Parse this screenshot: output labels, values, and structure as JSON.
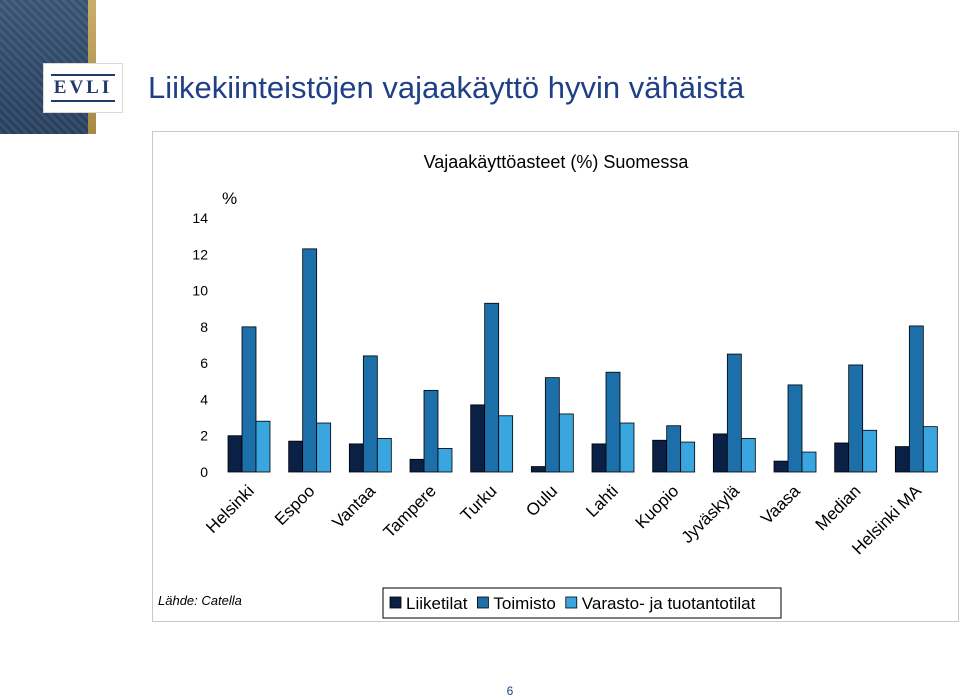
{
  "header": {
    "title": "Liikekiinteistöjen vajaakäyttö hyvin vähäistä",
    "logo_text": "EVLI"
  },
  "chart_data": {
    "type": "bar",
    "title": "Vajaakäyttöasteet (%) Suomessa",
    "ylabel": "%",
    "xlabel": "",
    "ylim": [
      0,
      14
    ],
    "yticks": [
      0,
      2,
      4,
      6,
      8,
      10,
      12,
      14
    ],
    "categories": [
      "Helsinki",
      "Espoo",
      "Vantaa",
      "Tampere",
      "Turku",
      "Oulu",
      "Lahti",
      "Kuopio",
      "Jyväskylä",
      "Vaasa",
      "Median",
      "Helsinki MA"
    ],
    "series": [
      {
        "name": "Liiketilat",
        "color": "#0a2145",
        "values": [
          2.0,
          1.7,
          1.55,
          0.7,
          3.7,
          0.3,
          1.55,
          1.75,
          2.1,
          0.6,
          1.6,
          1.4
        ]
      },
      {
        "name": "Toimisto",
        "color": "#1c6fa8",
        "values": [
          8.0,
          12.3,
          6.4,
          4.5,
          9.3,
          5.2,
          5.5,
          2.55,
          6.5,
          4.8,
          5.9,
          8.05
        ]
      },
      {
        "name": "Varasto- ja tuotantotilat",
        "color": "#3aa6e0",
        "values": [
          2.8,
          2.7,
          1.85,
          1.3,
          3.1,
          3.2,
          2.7,
          1.65,
          1.85,
          1.1,
          2.3,
          2.5
        ]
      }
    ],
    "grid": false,
    "legend_position": "bottom"
  },
  "source_note": "Lähde: Catella",
  "page_number": "6"
}
